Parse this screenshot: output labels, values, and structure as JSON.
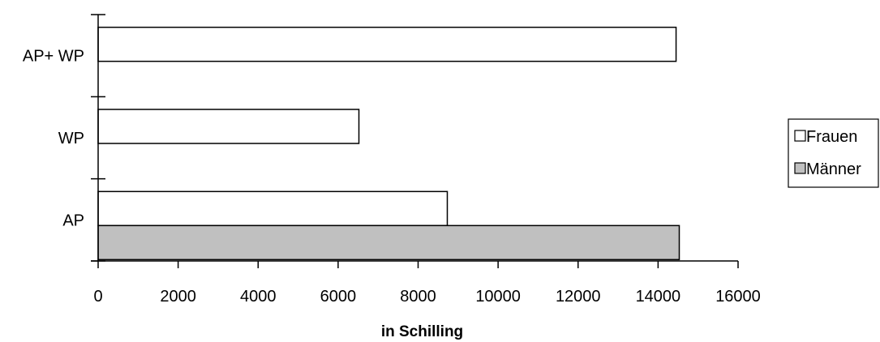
{
  "chart_data": {
    "type": "bar",
    "orientation": "horizontal",
    "categories": [
      "AP+ WP",
      "WP",
      "AP"
    ],
    "series": [
      {
        "name": "Frauen",
        "color": "#ffffff",
        "values": [
          14450,
          6520,
          8730
        ]
      },
      {
        "name": "Männer",
        "color": "#c0c0c0",
        "values": [
          null,
          null,
          14530
        ]
      }
    ],
    "xlabel": "in Schilling",
    "ylabel": "",
    "xlim": [
      0,
      16000
    ],
    "xticks": [
      "0",
      "2000",
      "4000",
      "6000",
      "8000",
      "10000",
      "12000",
      "14000",
      "16000"
    ],
    "grid": false,
    "legend_position": "right"
  }
}
